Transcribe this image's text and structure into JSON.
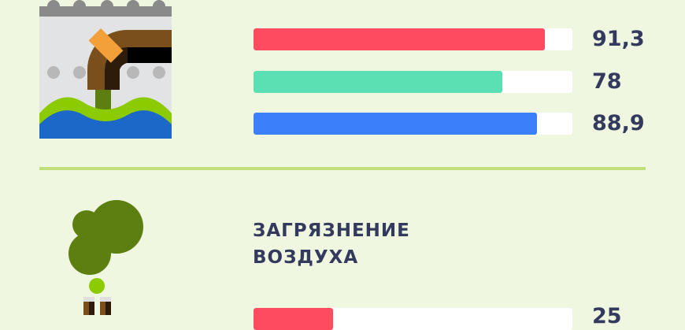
{
  "chart_data": [
    {
      "type": "bar",
      "orientation": "horizontal",
      "title": "",
      "xlim": [
        0,
        100
      ],
      "values": [
        91.3,
        78,
        88.9
      ],
      "labels": [
        "91,3",
        "78",
        "88,9"
      ],
      "colors": [
        "#ff4b5f",
        "#5ae0b2",
        "#3b7ffa"
      ]
    },
    {
      "type": "bar",
      "orientation": "horizontal",
      "title": "ЗАГРЯЗНЕНИЕ ВОЗДУХА",
      "title_lines": [
        "ЗАГРЯЗНЕНИЕ",
        "ВОЗДУХА"
      ],
      "xlim": [
        0,
        100
      ],
      "values": [
        25
      ],
      "labels": [
        "25"
      ],
      "colors": [
        "#ff4b5f"
      ]
    }
  ],
  "icons": {
    "water": "water-pollution-pipe-icon",
    "air": "air-pollution-smoke-icon"
  },
  "colors": {
    "background": "#eff7e0",
    "text": "#343a5e",
    "divider": "#bfe07a",
    "track": "#ffffff"
  }
}
